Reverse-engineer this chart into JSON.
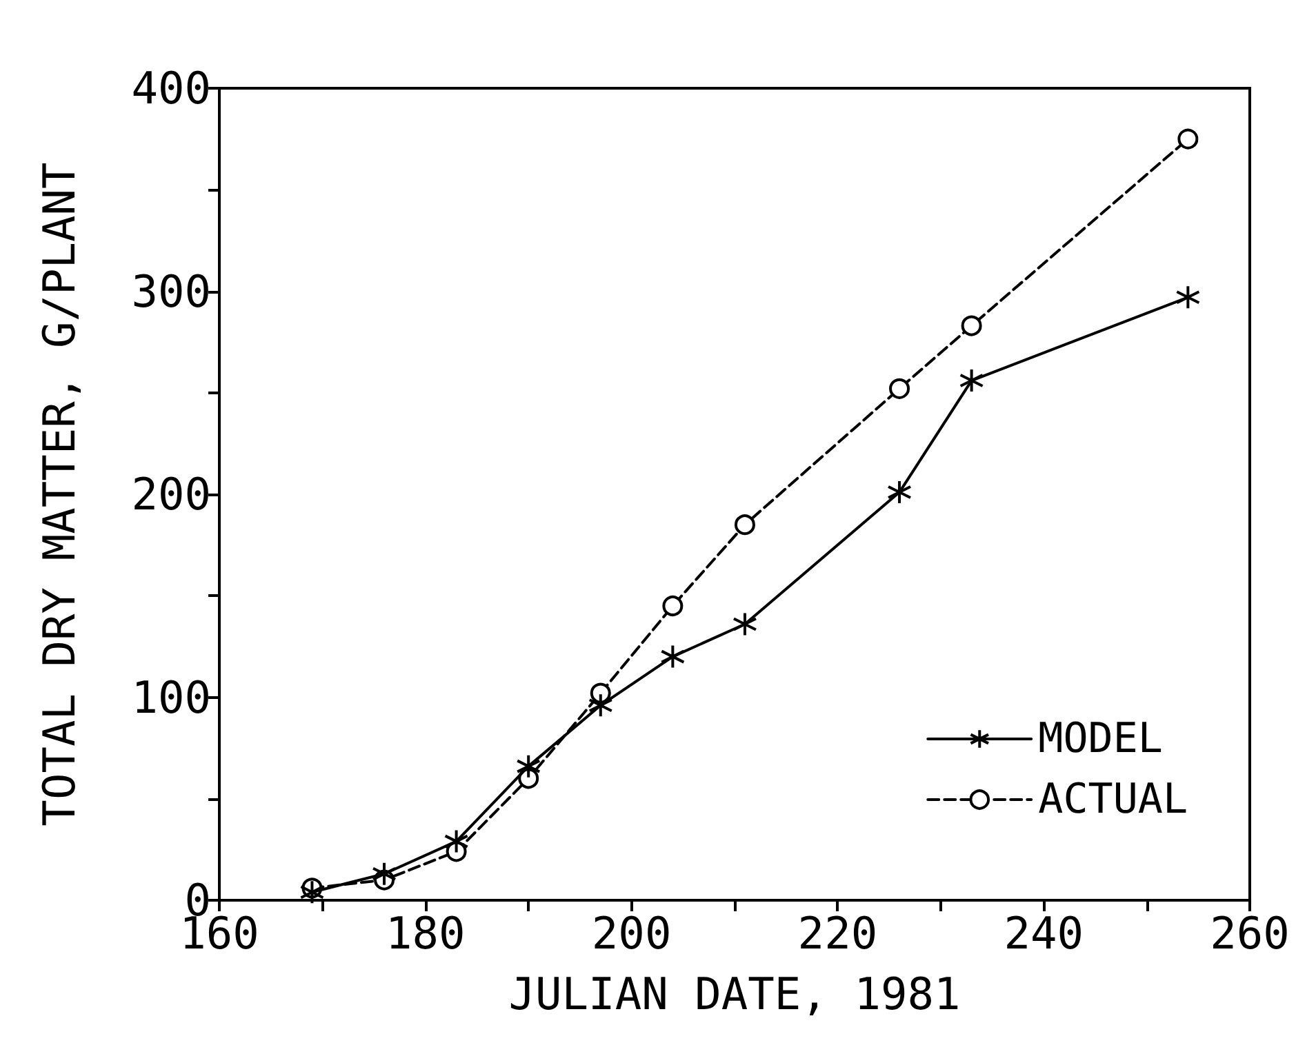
{
  "chart_data": {
    "type": "line",
    "xlabel": "JULIAN DATE, 1981",
    "ylabel": "TOTAL DRY MATTER, G/PLANT",
    "x": [
      169,
      176,
      183,
      190,
      197,
      204,
      211,
      226,
      233,
      254
    ],
    "series": [
      {
        "name": "MODEL",
        "color": "#000000",
        "marker": "cross",
        "line_style": "solid",
        "values": [
          4,
          13,
          29,
          66,
          96,
          120,
          136,
          201,
          256,
          297
        ]
      },
      {
        "name": "ACTUAL",
        "color": "#000000",
        "marker": "circle",
        "line_style": "dashed",
        "values": [
          6,
          10,
          24,
          60,
          102,
          145,
          185,
          252,
          283,
          375
        ]
      }
    ],
    "xlim": [
      160,
      260
    ],
    "xticks": [
      160,
      {
        "value": 170,
        "label": null
      },
      180,
      {
        "value": 190,
        "label": null
      },
      200,
      {
        "value": 210,
        "label": null
      },
      220,
      {
        "value": 230,
        "label": null
      },
      240,
      {
        "value": 250,
        "label": null
      },
      260
    ],
    "ylim": [
      0,
      400
    ],
    "yticks": [
      0,
      {
        "value": 50,
        "label": null
      },
      100,
      {
        "value": 150,
        "label": null
      },
      200,
      {
        "value": 250,
        "label": null
      },
      300,
      {
        "value": 350,
        "label": null
      },
      400
    ],
    "grid": false,
    "legend": "bottom right"
  }
}
